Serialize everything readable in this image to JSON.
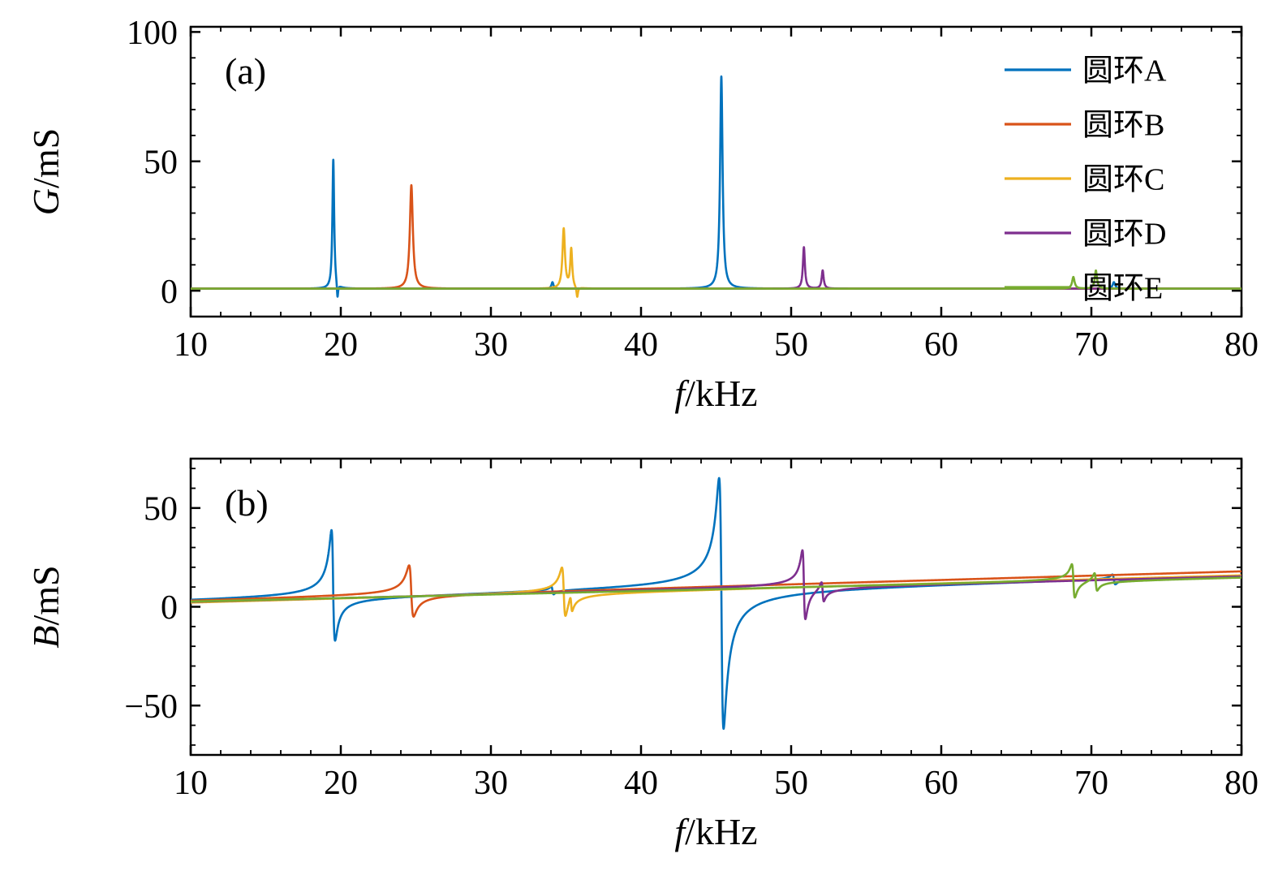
{
  "figure": {
    "background": "#ffffff"
  },
  "colors": {
    "ring_a": "#0072BD",
    "ring_b": "#D95319",
    "ring_c": "#EDB120",
    "ring_d": "#7E2F8E",
    "ring_e": "#77AC30",
    "axis": "#000000"
  },
  "legend": {
    "labels": [
      "圆环A",
      "圆环B",
      "圆环C",
      "圆环D",
      "圆环E"
    ],
    "position": "top-right"
  },
  "chart_data": [
    {
      "type": "line",
      "panel_label": "(a)",
      "model": "lorentzian",
      "xlabel": "f/kHz",
      "xlabel_italic": "f",
      "xlabel_rest": "/kHz",
      "ylabel": "G/mS",
      "ylabel_italic": "G",
      "ylabel_rest": "/mS",
      "xlim": [
        10,
        80
      ],
      "ylim": [
        -10,
        102
      ],
      "xticks": [
        10,
        20,
        30,
        40,
        50,
        60,
        70,
        80
      ],
      "yticks": [
        0,
        50,
        100
      ],
      "grid": false,
      "legend_position": "top-right",
      "series": [
        {
          "name": "圆环A",
          "color": "#0072BD",
          "baseline": 0.8,
          "resonances": [
            {
              "f0": 19.5,
              "h": 50,
              "w": 0.07
            },
            {
              "f0": 19.78,
              "h": -6,
              "w": 0.05
            },
            {
              "f0": 34.1,
              "h": 2.5,
              "w": 0.08
            },
            {
              "f0": 45.35,
              "h": 82,
              "w": 0.1
            },
            {
              "f0": 71.5,
              "h": 2.5,
              "w": 0.1
            }
          ]
        },
        {
          "name": "圆环B",
          "color": "#D95319",
          "baseline": 0.8,
          "resonances": [
            {
              "f0": 24.7,
              "h": 40,
              "w": 0.12
            }
          ]
        },
        {
          "name": "圆环C",
          "color": "#EDB120",
          "baseline": 0.8,
          "resonances": [
            {
              "f0": 34.85,
              "h": 23,
              "w": 0.1
            },
            {
              "f0": 35.35,
              "h": 15,
              "w": 0.08
            },
            {
              "f0": 35.75,
              "h": -4,
              "w": 0.06
            }
          ]
        },
        {
          "name": "圆环D",
          "color": "#7E2F8E",
          "baseline": 0.8,
          "resonances": [
            {
              "f0": 50.85,
              "h": 16,
              "w": 0.08
            },
            {
              "f0": 52.1,
              "h": 7,
              "w": 0.08
            }
          ]
        },
        {
          "name": "圆环E",
          "color": "#77AC30",
          "baseline": 0.8,
          "resonances": [
            {
              "f0": 68.8,
              "h": 4.5,
              "w": 0.1
            },
            {
              "f0": 70.3,
              "h": 7,
              "w": 0.09
            }
          ]
        }
      ]
    },
    {
      "type": "line",
      "panel_label": "(b)",
      "model": "dispersive",
      "xlabel": "f/kHz",
      "xlabel_italic": "f",
      "xlabel_rest": "/kHz",
      "ylabel": "B/mS",
      "ylabel_italic": "B",
      "ylabel_rest": "/mS",
      "xlim": [
        10,
        80
      ],
      "ylim": [
        -75,
        75
      ],
      "xticks": [
        10,
        20,
        30,
        40,
        50,
        60,
        70,
        80
      ],
      "yticks": [
        -50,
        0,
        50
      ],
      "grid": false,
      "series": [
        {
          "name": "圆环A",
          "color": "#0072BD",
          "b_start": 2.2,
          "b_end": 16.5,
          "resonances": [
            {
              "f0": 19.5,
              "w": 0.12,
              "up": 34,
              "dn": 22
            },
            {
              "f0": 34.1,
              "w": 0.08,
              "up": 2,
              "dn": 2
            },
            {
              "f0": 45.35,
              "w": 0.15,
              "up": 56,
              "dn": 71
            },
            {
              "f0": 71.5,
              "w": 0.1,
              "up": 2.5,
              "dn": 2.5
            }
          ]
        },
        {
          "name": "圆环B",
          "color": "#D95319",
          "b_start": 2.8,
          "b_end": 18,
          "resonances": [
            {
              "f0": 24.7,
              "w": 0.15,
              "up": 15,
              "dn": 11
            }
          ]
        },
        {
          "name": "圆环C",
          "color": "#EDB120",
          "b_start": 2.0,
          "b_end": 16,
          "resonances": [
            {
              "f0": 34.85,
              "w": 0.12,
              "up": 12,
              "dn": 13
            },
            {
              "f0": 35.35,
              "w": 0.07,
              "up": 4,
              "dn": 4
            }
          ]
        },
        {
          "name": "圆环D",
          "color": "#7E2F8E",
          "b_start": 2.4,
          "b_end": 15.5,
          "resonances": [
            {
              "f0": 50.85,
              "w": 0.1,
              "up": 18,
              "dn": 17
            },
            {
              "f0": 52.1,
              "w": 0.08,
              "up": 5,
              "dn": 5
            }
          ]
        },
        {
          "name": "圆环E",
          "color": "#77AC30",
          "b_start": 2.6,
          "b_end": 15,
          "resonances": [
            {
              "f0": 68.8,
              "w": 0.1,
              "up": 8,
              "dn": 9
            },
            {
              "f0": 70.3,
              "w": 0.09,
              "up": 5,
              "dn": 4
            }
          ]
        }
      ]
    }
  ]
}
